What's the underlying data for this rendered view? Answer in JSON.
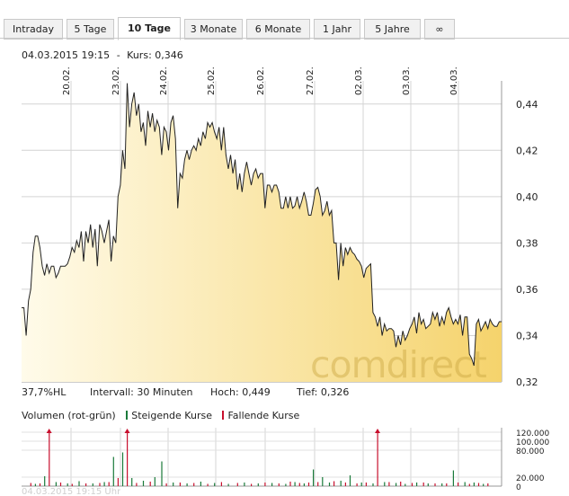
{
  "tabs": [
    {
      "label": "Intraday",
      "active": false
    },
    {
      "label": "5 Tage",
      "active": false
    },
    {
      "label": "10 Tage",
      "active": true
    },
    {
      "label": "3 Monate",
      "active": false
    },
    {
      "label": "6 Monate",
      "active": false
    },
    {
      "label": "1 Jahr",
      "active": false
    },
    {
      "label": "5 Jahre",
      "active": false
    },
    {
      "label": "∞",
      "active": false
    }
  ],
  "header": {
    "datetime": "04.03.2015 19:15",
    "separator": "-",
    "kurs_label": "Kurs:",
    "kurs_value": "0,346"
  },
  "stats": {
    "hl": "37,7%HL",
    "interval_label": "Intervall:",
    "interval_value": "30 Minuten",
    "high_label": "Hoch:",
    "high_value": "0,449",
    "low_label": "Tief:",
    "low_value": "0,326"
  },
  "volume_header": {
    "title": "Volumen (rot-grün)",
    "rising": "Steigende Kurse",
    "falling": "Fallende Kurse"
  },
  "watermark": "comdirect",
  "footer_faint": "04.03.2015 19:15 Uhr",
  "colors": {
    "rising": "#1a7a3a",
    "falling": "#c8102e",
    "area_light": "#fffbea",
    "area_dark": "#f5d36c",
    "line": "#222222",
    "grid": "#d4d4d4"
  },
  "chart_data": [
    {
      "type": "area",
      "x_ticks": [
        "20.02.",
        "23.02.",
        "24.02.",
        "25.02.",
        "26.02.",
        "27.02.",
        "02.03.",
        "03.03.",
        "04.03."
      ],
      "y_ticks": [
        "0,44",
        "0,42",
        "0,40",
        "0,38",
        "0,36",
        "0,34",
        "0,32"
      ],
      "ylim": [
        0.32,
        0.45
      ],
      "grid": true,
      "series": [
        {
          "values": [
            0.352,
            0.352,
            0.34,
            0.355,
            0.36,
            0.376,
            0.383,
            0.383,
            0.378,
            0.37,
            0.366,
            0.371,
            0.367,
            0.37,
            0.37,
            0.365,
            0.367,
            0.37,
            0.37,
            0.37,
            0.371,
            0.374,
            0.378,
            0.376,
            0.381,
            0.378,
            0.385,
            0.372,
            0.385,
            0.38,
            0.388,
            0.378,
            0.386,
            0.37,
            0.388,
            0.385,
            0.38,
            0.385,
            0.39,
            0.372,
            0.383,
            0.38,
            0.4,
            0.405,
            0.42,
            0.412,
            0.449,
            0.43,
            0.44,
            0.445,
            0.435,
            0.44,
            0.428,
            0.432,
            0.422,
            0.437,
            0.43,
            0.436,
            0.428,
            0.433,
            0.43,
            0.418,
            0.43,
            0.428,
            0.42,
            0.432,
            0.435,
            0.425,
            0.395,
            0.41,
            0.408,
            0.416,
            0.42,
            0.416,
            0.42,
            0.422,
            0.42,
            0.425,
            0.422,
            0.428,
            0.425,
            0.432,
            0.43,
            0.432,
            0.428,
            0.425,
            0.43,
            0.42,
            0.43,
            0.418,
            0.412,
            0.418,
            0.41,
            0.416,
            0.403,
            0.41,
            0.402,
            0.41,
            0.415,
            0.41,
            0.405,
            0.41,
            0.412,
            0.408,
            0.41,
            0.41,
            0.395,
            0.405,
            0.405,
            0.402,
            0.405,
            0.405,
            0.402,
            0.395,
            0.395,
            0.4,
            0.395,
            0.4,
            0.395,
            0.396,
            0.4,
            0.395,
            0.398,
            0.402,
            0.398,
            0.392,
            0.392,
            0.397,
            0.403,
            0.404,
            0.4,
            0.392,
            0.394,
            0.398,
            0.392,
            0.394,
            0.38,
            0.38,
            0.364,
            0.38,
            0.37,
            0.378,
            0.375,
            0.378,
            0.376,
            0.375,
            0.373,
            0.372,
            0.37,
            0.365,
            0.369,
            0.37,
            0.371,
            0.35,
            0.348,
            0.344,
            0.348,
            0.34,
            0.345,
            0.342,
            0.343,
            0.343,
            0.342,
            0.335,
            0.34,
            0.336,
            0.342,
            0.338,
            0.34,
            0.343,
            0.345,
            0.348,
            0.341,
            0.35,
            0.345,
            0.347,
            0.343,
            0.344,
            0.345,
            0.35,
            0.347,
            0.35,
            0.344,
            0.348,
            0.345,
            0.35,
            0.352,
            0.348,
            0.345,
            0.347,
            0.345,
            0.349,
            0.34,
            0.348,
            0.348,
            0.332,
            0.33,
            0.327,
            0.345,
            0.347,
            0.342,
            0.344,
            0.346,
            0.343,
            0.347,
            0.345,
            0.344,
            0.344,
            0.346,
            0.346
          ]
        }
      ]
    },
    {
      "type": "bar",
      "title": "Volumen (rot-grün)",
      "y_ticks": [
        "120.000",
        "100.000",
        "80.000",
        "20.000",
        "0"
      ],
      "ylim": [
        0,
        130000
      ],
      "grid": true,
      "series": [
        {
          "name": "Steigende Kurse",
          "values": [
            {
              "x": 6,
              "v": 5000
            },
            {
              "x": 10,
              "v": 22000
            },
            {
              "x": 15,
              "v": 9000
            },
            {
              "x": 20,
              "v": 6000
            },
            {
              "x": 25,
              "v": 11000
            },
            {
              "x": 31,
              "v": 6000
            },
            {
              "x": 36,
              "v": 9000
            },
            {
              "x": 40,
              "v": 65000
            },
            {
              "x": 44,
              "v": 75000
            },
            {
              "x": 48,
              "v": 18000
            },
            {
              "x": 53,
              "v": 12000
            },
            {
              "x": 58,
              "v": 20000
            },
            {
              "x": 61,
              "v": 55000
            },
            {
              "x": 66,
              "v": 8000
            },
            {
              "x": 72,
              "v": 6000
            },
            {
              "x": 78,
              "v": 10000
            },
            {
              "x": 84,
              "v": 7000
            },
            {
              "x": 90,
              "v": 5000
            },
            {
              "x": 97,
              "v": 8000
            },
            {
              "x": 103,
              "v": 6000
            },
            {
              "x": 109,
              "v": 7000
            },
            {
              "x": 115,
              "v": 5000
            },
            {
              "x": 119,
              "v": 9000
            },
            {
              "x": 123,
              "v": 6000
            },
            {
              "x": 127,
              "v": 37000
            },
            {
              "x": 131,
              "v": 20000
            },
            {
              "x": 134,
              "v": 8000
            },
            {
              "x": 139,
              "v": 12000
            },
            {
              "x": 143,
              "v": 24000
            },
            {
              "x": 148,
              "v": 8000
            },
            {
              "x": 153,
              "v": 6000
            },
            {
              "x": 158,
              "v": 9000
            },
            {
              "x": 163,
              "v": 7000
            },
            {
              "x": 167,
              "v": 5000
            },
            {
              "x": 172,
              "v": 8000
            },
            {
              "x": 177,
              "v": 6000
            },
            {
              "x": 183,
              "v": 6000
            },
            {
              "x": 188,
              "v": 35000
            },
            {
              "x": 193,
              "v": 9000
            },
            {
              "x": 197,
              "v": 8000
            },
            {
              "x": 201,
              "v": 5000
            }
          ]
        },
        {
          "name": "Fallende Kurse",
          "values": [
            {
              "x": 4,
              "v": 7000
            },
            {
              "x": 8,
              "v": 6000
            },
            {
              "x": 12,
              "v": 130000
            },
            {
              "x": 17,
              "v": 8000
            },
            {
              "x": 22,
              "v": 5000
            },
            {
              "x": 28,
              "v": 6000
            },
            {
              "x": 34,
              "v": 7000
            },
            {
              "x": 38,
              "v": 9000
            },
            {
              "x": 42,
              "v": 18000
            },
            {
              "x": 46,
              "v": 130000
            },
            {
              "x": 50,
              "v": 7000
            },
            {
              "x": 56,
              "v": 10000
            },
            {
              "x": 63,
              "v": 6000
            },
            {
              "x": 69,
              "v": 8000
            },
            {
              "x": 75,
              "v": 7000
            },
            {
              "x": 81,
              "v": 5000
            },
            {
              "x": 87,
              "v": 9000
            },
            {
              "x": 94,
              "v": 7000
            },
            {
              "x": 100,
              "v": 5000
            },
            {
              "x": 106,
              "v": 8000
            },
            {
              "x": 112,
              "v": 6000
            },
            {
              "x": 117,
              "v": 10000
            },
            {
              "x": 121,
              "v": 7000
            },
            {
              "x": 125,
              "v": 8000
            },
            {
              "x": 129,
              "v": 9000
            },
            {
              "x": 136,
              "v": 11000
            },
            {
              "x": 141,
              "v": 8000
            },
            {
              "x": 146,
              "v": 6000
            },
            {
              "x": 150,
              "v": 8000
            },
            {
              "x": 155,
              "v": 130000
            },
            {
              "x": 160,
              "v": 9000
            },
            {
              "x": 165,
              "v": 10000
            },
            {
              "x": 170,
              "v": 7000
            },
            {
              "x": 175,
              "v": 8000
            },
            {
              "x": 180,
              "v": 6000
            },
            {
              "x": 185,
              "v": 6000
            },
            {
              "x": 190,
              "v": 8000
            },
            {
              "x": 195,
              "v": 5000
            },
            {
              "x": 199,
              "v": 7000
            },
            {
              "x": 203,
              "v": 6000
            }
          ]
        }
      ]
    }
  ]
}
